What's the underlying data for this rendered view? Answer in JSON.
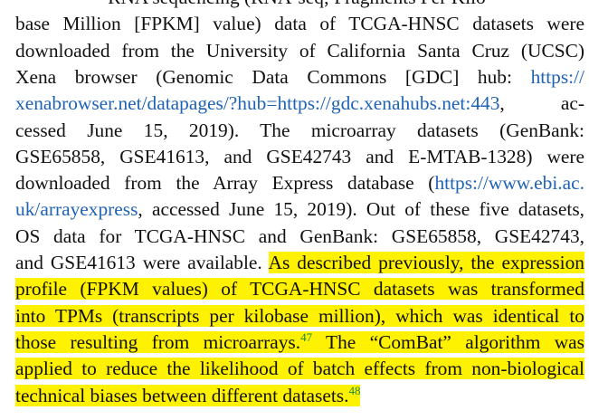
{
  "paragraph": {
    "l0": "RNA sequencing (RNA-seq; Fragments Per Kilo-",
    "l1": "base Million [FPKM] value) data of TCGA-HNSC datasets were",
    "l2": "downloaded from the University of California Santa Cruz (UCSC)",
    "l3_text": "Xena browser (Genomic Data Commons [GDC] hub: ",
    "l3_link": "https://",
    "l4_link": "xenabrowser.net/datapages/?hub=https://gdc.xenahubs.net:443",
    "l4_text": ", ac-",
    "l5": "cessed June 15, 2019). The microarray datasets (GenBank:",
    "l6": "GSE65858, GSE41613, and GSE42743 and E-MTAB-1328) were",
    "l7_text": "downloaded from the Array Express database (",
    "l7_link": "https://www.ebi.ac.",
    "l8_link": "uk/arrayexpress",
    "l8_text": ", accessed June 15, 2019). Out of these five datasets,",
    "l9": "OS data for TCGA-HNSC and GenBank: GSE65858, GSE42743,",
    "l10_text": "and GSE41613 were available. ",
    "l10_hl": "As described previously, the expression",
    "l11_hl": "profile (FPKM values) of TCGA-HNSC datasets was transformed",
    "l12_hl": "into TPMs (transcripts per kilobase million), which was identical to",
    "l13_hl": "those resulting from microarrays.",
    "l13_cite": "47",
    "l13_hl2": " The “ComBat” algorithm was",
    "l14_hl": "applied to reduce the likelihood of batch effects from non-biological",
    "l15_hl": "technical biases between different datasets.",
    "l15_cite": "48"
  },
  "colors": {
    "text": "#111111",
    "link": "#1f63b5",
    "highlight": "#fff200",
    "citation": "#1a8a3a"
  }
}
